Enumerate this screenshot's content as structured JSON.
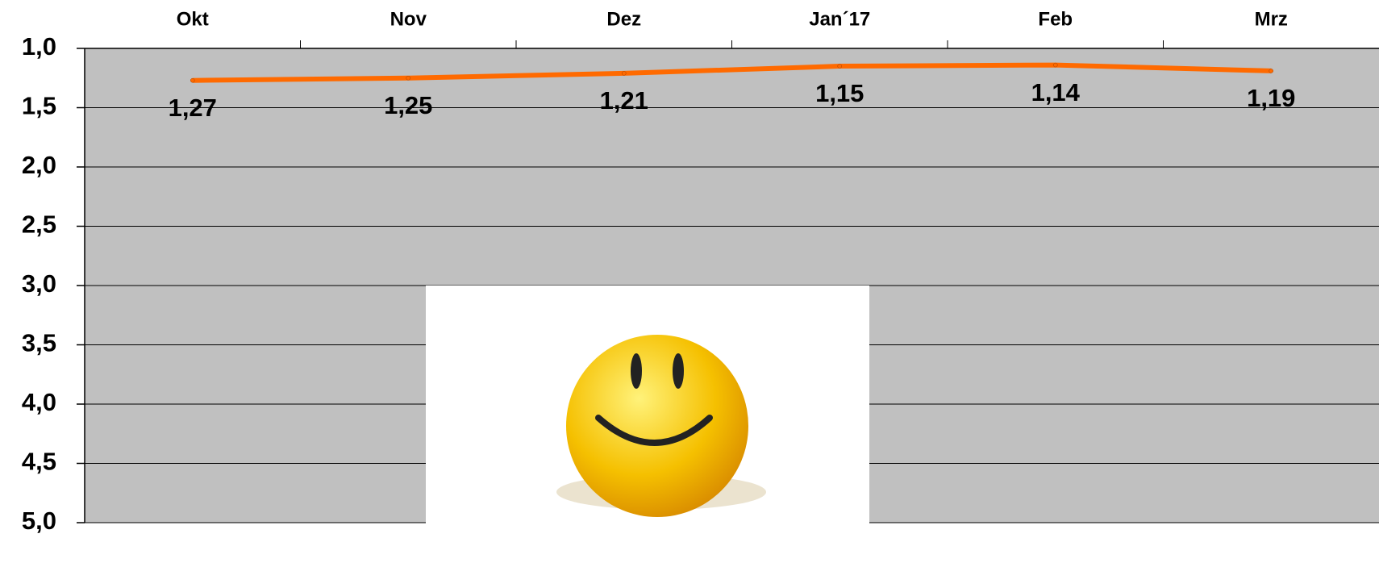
{
  "chart_data": {
    "type": "line",
    "categories": [
      "Okt",
      "Nov",
      "Dez",
      "Jan´17",
      "Feb",
      "Mrz"
    ],
    "values": [
      1.27,
      1.25,
      1.21,
      1.15,
      1.14,
      1.19
    ],
    "value_labels": [
      "1,27",
      "1,25",
      "1,21",
      "1,15",
      "1,14",
      "1,19"
    ],
    "color": "#ff6a00",
    "ylim": [
      1,
      5
    ],
    "y_inverted": true,
    "yticks": [
      {
        "value": 1,
        "label": "1,0"
      },
      {
        "value": 1.5,
        "label": "1,5"
      },
      {
        "value": 2,
        "label": "2,0"
      },
      {
        "value": 2.5,
        "label": "2,5"
      },
      {
        "value": 3,
        "label": "3,0"
      },
      {
        "value": 3.5,
        "label": "3,5"
      },
      {
        "value": 4,
        "label": "4,0"
      },
      {
        "value": 4.5,
        "label": "4,5"
      },
      {
        "value": 5,
        "label": "5,0"
      }
    ],
    "grid": true
  }
}
